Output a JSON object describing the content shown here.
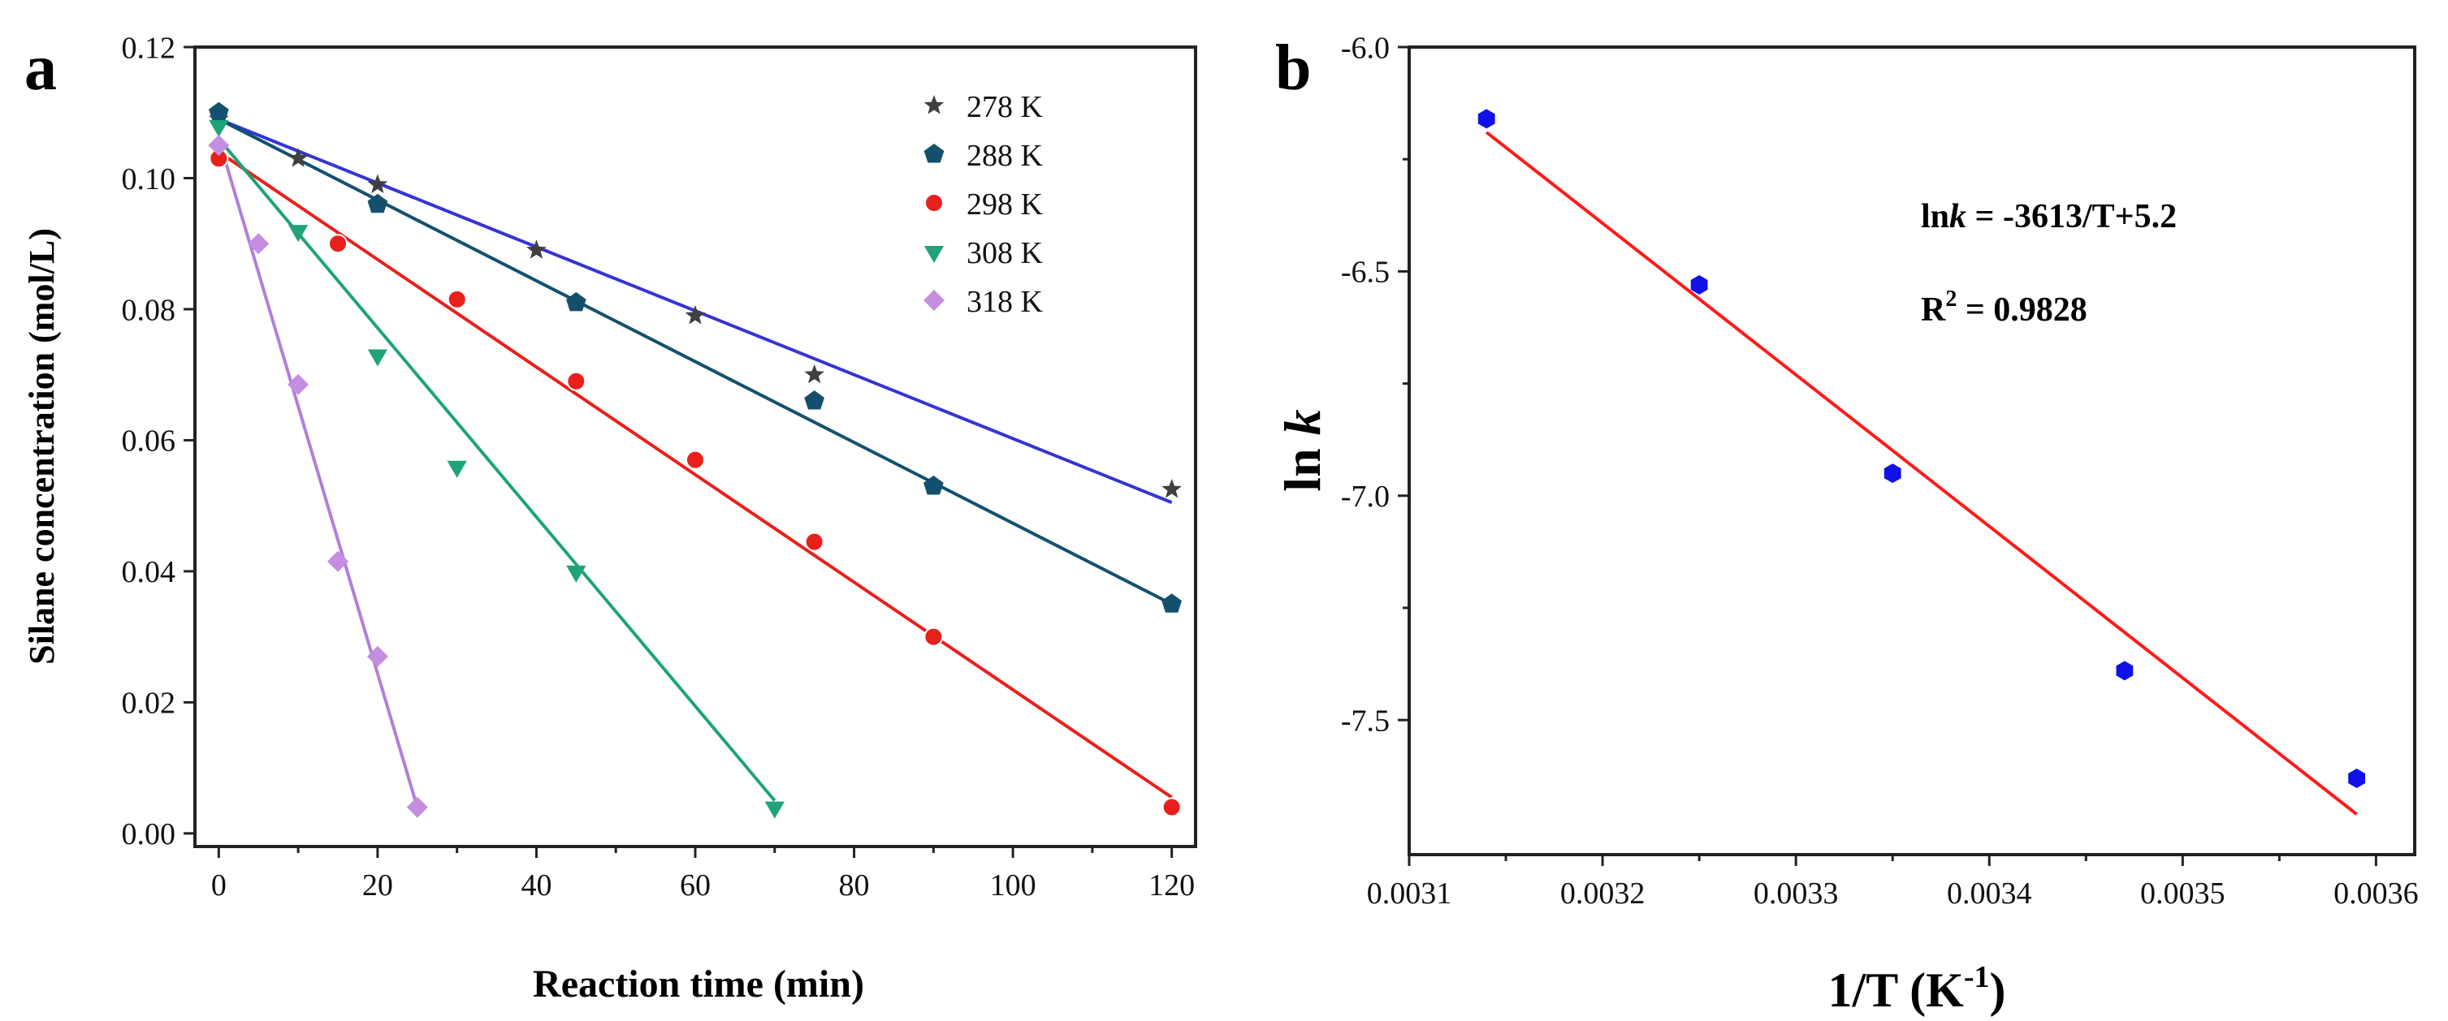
{
  "panel_a": {
    "letter": "a",
    "xlabel_bound": "Reaction time (min)",
    "ylabel_bound": "Silane concentration (mol/L)"
  },
  "panel_b": {
    "letter": "b",
    "equation_prefix": "ln",
    "equation_k": "k",
    "equation_rest": " = -3613/T+5.2",
    "r2_prefix": "R",
    "r2_exp": "2",
    "r2_rest": " = 0.9828",
    "ylabel_ln": "ln ",
    "ylabel_k": "k",
    "xlabel_base": "1/T (K",
    "xlabel_exp": "-1",
    "xlabel_close": ")"
  },
  "chart_data": [
    {
      "type": "scatter",
      "title": "",
      "xlabel": "Reaction time (min)",
      "ylabel": "Silane concentration (mol/L)",
      "xlim": [
        -3,
        123
      ],
      "ylim": [
        -0.002,
        0.12
      ],
      "xticks": [
        0,
        20,
        40,
        60,
        80,
        100,
        120
      ],
      "yticks": [
        0.0,
        0.02,
        0.04,
        0.06,
        0.08,
        0.1,
        0.12
      ],
      "xtick_labels": [
        "0",
        "20",
        "40",
        "60",
        "80",
        "100",
        "120"
      ],
      "ytick_labels": [
        "0.00",
        "0.02",
        "0.04",
        "0.06",
        "0.08",
        "0.10",
        "0.12"
      ],
      "legend_position": "top-right",
      "series": [
        {
          "name": "278 K",
          "marker": "star",
          "color": "#404040",
          "line_color": "#3434d4",
          "x": [
            0,
            10,
            20,
            40,
            60,
            75,
            120
          ],
          "y": [
            0.109,
            0.103,
            0.099,
            0.089,
            0.079,
            0.07,
            0.0525
          ],
          "fit": {
            "x": [
              0,
              120
            ],
            "y": [
              0.109,
              0.0505
            ]
          }
        },
        {
          "name": "288 K",
          "marker": "pentagon",
          "color": "#14506e",
          "line_color": "#14506e",
          "x": [
            0,
            20,
            45,
            75,
            90,
            120
          ],
          "y": [
            0.11,
            0.096,
            0.081,
            0.066,
            0.053,
            0.035
          ],
          "fit": {
            "x": [
              0,
              120
            ],
            "y": [
              0.109,
              0.035
            ]
          }
        },
        {
          "name": "298 K",
          "marker": "circle",
          "color": "#e8201c",
          "line_color": "#e8201c",
          "x": [
            0,
            15,
            30,
            45,
            60,
            75,
            90,
            120
          ],
          "y": [
            0.103,
            0.09,
            0.0815,
            0.069,
            0.057,
            0.0445,
            0.03,
            0.004
          ],
          "fit": {
            "x": [
              0,
              120
            ],
            "y": [
              0.104,
              0.0055
            ]
          }
        },
        {
          "name": "308 K",
          "marker": "triangle-down",
          "color": "#1ea37a",
          "line_color": "#1ea37a",
          "x": [
            0,
            10,
            20,
            30,
            45,
            70
          ],
          "y": [
            0.108,
            0.092,
            0.073,
            0.056,
            0.04,
            0.004
          ],
          "fit": {
            "x": [
              0,
              70
            ],
            "y": [
              0.106,
              0.005
            ]
          }
        },
        {
          "name": "318 K",
          "marker": "diamond",
          "color": "#c58ee0",
          "line_color": "#b080d8",
          "x": [
            0,
            5,
            10,
            15,
            20,
            25
          ],
          "y": [
            0.105,
            0.09,
            0.0685,
            0.0415,
            0.027,
            0.004
          ],
          "fit": {
            "x": [
              0,
              25
            ],
            "y": [
              0.106,
              0.004
            ]
          }
        }
      ]
    },
    {
      "type": "scatter",
      "title": "",
      "xlabel": "1/T (K-1)",
      "ylabel": "ln k",
      "xlim": [
        0.0031,
        0.00362
      ],
      "ylim": [
        -7.8,
        -6.0
      ],
      "xticks": [
        0.0031,
        0.0032,
        0.0033,
        0.0034,
        0.0035,
        0.0036
      ],
      "yticks": [
        -7.5,
        -7.0,
        -6.5,
        -6.0
      ],
      "xtick_labels": [
        "0.0031",
        "0.0032",
        "0.0033",
        "0.0034",
        "0.0035",
        "0.0036"
      ],
      "ytick_labels": [
        "-7.5",
        "-7.0",
        "-6.5",
        "-6.0"
      ],
      "annotations": [
        "lnk = -3613/T+5.2",
        "R2 = 0.9828"
      ],
      "series": [
        {
          "name": "ln k",
          "marker": "hexagon",
          "color": "#1010e8",
          "x": [
            0.00314,
            0.00325,
            0.00335,
            0.00347,
            0.00359
          ],
          "y": [
            -6.16,
            -6.53,
            -6.95,
            -7.39,
            -7.63
          ],
          "fit": {
            "x": [
              0.00314,
              0.00359
            ],
            "y": [
              -6.19,
              -7.71
            ],
            "color": "#ff1a1a"
          }
        }
      ]
    }
  ]
}
